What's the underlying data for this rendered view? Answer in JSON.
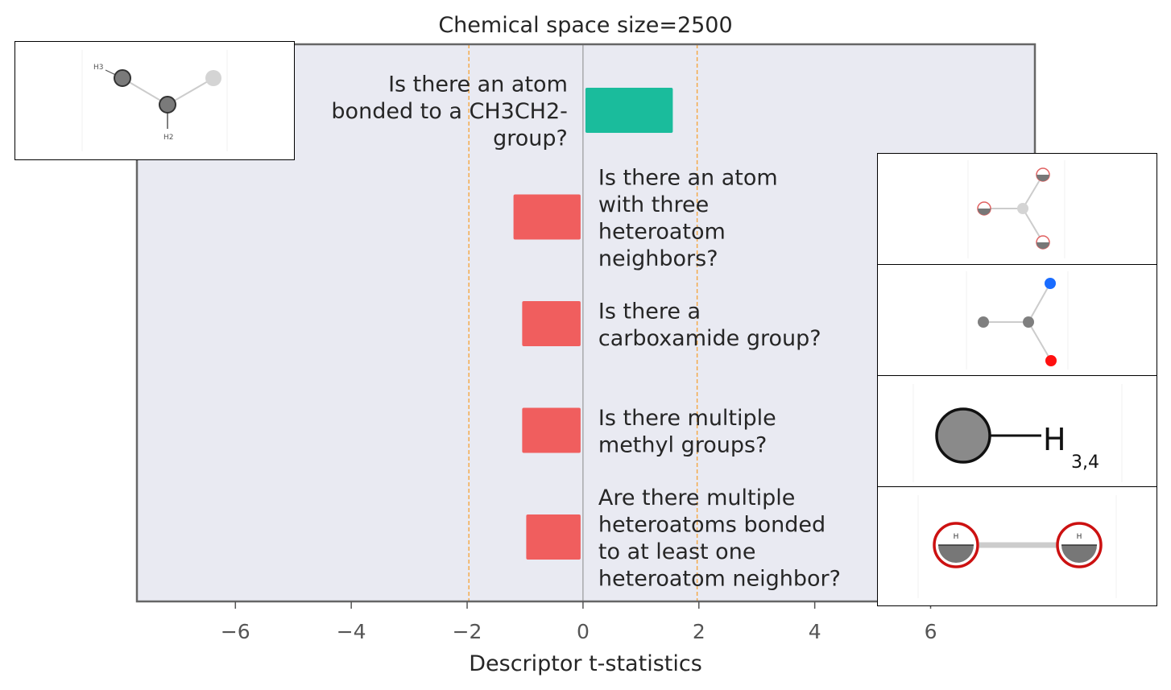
{
  "chart_data": {
    "type": "bar",
    "orientation": "horizontal",
    "title": "Chemical space size=2500",
    "xlabel": "Descriptor t-statistics",
    "ylabel": "",
    "xlim": [
      -7.7,
      7.8
    ],
    "xticks": [
      -6,
      -4,
      -2,
      0,
      2,
      4,
      6
    ],
    "xtick_labels": [
      "−6",
      "−4",
      "−2",
      "0",
      "2",
      "4",
      "6"
    ],
    "threshold_lines": [
      -1.97,
      1.97
    ],
    "categories": [
      "Is there an atom bonded to a CH3CH2- group?",
      "Is there an atom with three heteroatom neighbors?",
      "Is there a carboxamide group?",
      "Is there multiple methyl groups?",
      "Are there multiple heteroatoms bonded to at least one heteroatom neighbor?"
    ],
    "label_lines": [
      [
        "Is there an atom",
        "bonded to a CH3CH2-",
        "group?"
      ],
      [
        "Is there an atom",
        "with three",
        "heteroatom",
        "neighbors?"
      ],
      [
        "Is there a",
        "carboxamide group?"
      ],
      [
        "Is there multiple",
        "methyl groups?"
      ],
      [
        "Are there multiple",
        "heteroatoms bonded",
        "to at least one",
        "heteroatom neighbor?"
      ]
    ],
    "values": [
      1.55,
      -1.2,
      -1.05,
      -1.05,
      -0.98
    ],
    "grid": false,
    "colors": {
      "positive": "#1abc9c",
      "negative": "#f05e5e",
      "threshold": "#f5a742",
      "plot_background": "#e9eaf2",
      "frame": "#666666",
      "zero_line": "#888888"
    }
  },
  "molecule_images": [
    {
      "name": "ethyl-fragment",
      "atom_labels": [
        "H3",
        "H2"
      ]
    },
    {
      "name": "three-heteroatom-fragment",
      "atom_labels": []
    },
    {
      "name": "carboxamide-fragment",
      "atom_labels": []
    },
    {
      "name": "methyl-fragment",
      "atom_labels": [
        "H",
        "3,4"
      ]
    },
    {
      "name": "heteroatom-pair-fragment",
      "atom_labels": [
        "H",
        "H"
      ]
    }
  ]
}
